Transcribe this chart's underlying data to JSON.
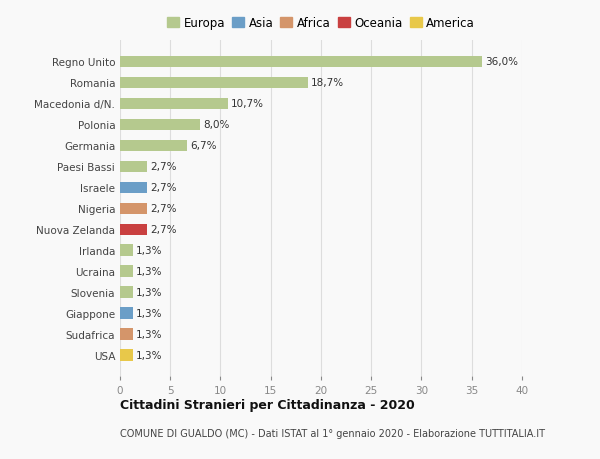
{
  "categories": [
    "Regno Unito",
    "Romania",
    "Macedonia d/N.",
    "Polonia",
    "Germania",
    "Paesi Bassi",
    "Israele",
    "Nigeria",
    "Nuova Zelanda",
    "Irlanda",
    "Ucraina",
    "Slovenia",
    "Giappone",
    "Sudafrica",
    "USA"
  ],
  "values": [
    36.0,
    18.7,
    10.7,
    8.0,
    6.7,
    2.7,
    2.7,
    2.7,
    2.7,
    1.3,
    1.3,
    1.3,
    1.3,
    1.3,
    1.3
  ],
  "labels": [
    "36,0%",
    "18,7%",
    "10,7%",
    "8,0%",
    "6,7%",
    "2,7%",
    "2,7%",
    "2,7%",
    "2,7%",
    "1,3%",
    "1,3%",
    "1,3%",
    "1,3%",
    "1,3%",
    "1,3%"
  ],
  "colors": [
    "#b5c98e",
    "#b5c98e",
    "#b5c98e",
    "#b5c98e",
    "#b5c98e",
    "#b5c98e",
    "#6b9ec7",
    "#d4956a",
    "#c94040",
    "#b5c98e",
    "#b5c98e",
    "#b5c98e",
    "#6b9ec7",
    "#d4956a",
    "#e8c84a"
  ],
  "legend": {
    "Europa": "#b5c98e",
    "Asia": "#6b9ec7",
    "Africa": "#d4956a",
    "Oceania": "#c94040",
    "America": "#e8c84a"
  },
  "xlim": [
    0,
    40
  ],
  "xticks": [
    0,
    5,
    10,
    15,
    20,
    25,
    30,
    35,
    40
  ],
  "title": "Cittadini Stranieri per Cittadinanza - 2020",
  "subtitle": "COMUNE DI GUALDO (MC) - Dati ISTAT al 1° gennaio 2020 - Elaborazione TUTTITALIA.IT",
  "background_color": "#f9f9f9",
  "grid_color": "#dddddd",
  "bar_height": 0.55
}
